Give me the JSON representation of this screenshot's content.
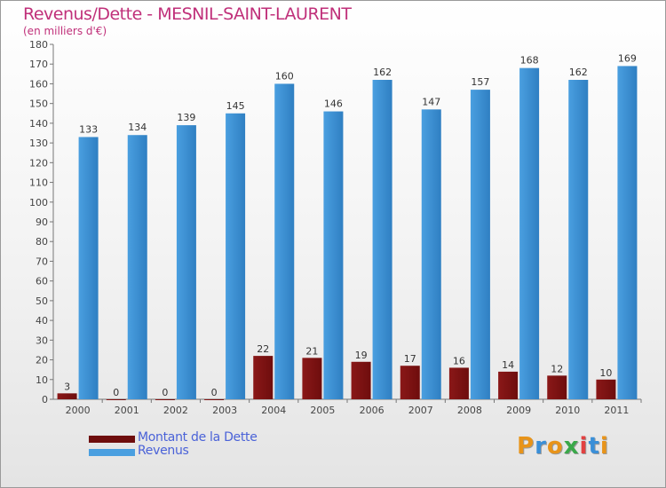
{
  "title": "Revenus/Dette - MESNIL-SAINT-LAURENT",
  "subtitle": "(en milliers d'€)",
  "chart_data": {
    "type": "bar",
    "title": "Revenus/Dette - MESNIL-SAINT-LAURENT",
    "ylabel": "(en milliers d'€)",
    "xlabel": "",
    "categories": [
      "2000",
      "2001",
      "2002",
      "2003",
      "2004",
      "2005",
      "2006",
      "2007",
      "2008",
      "2009",
      "2010",
      "2011"
    ],
    "series": [
      {
        "name": "Montant de la Dette",
        "values": [
          3,
          0,
          0,
          0,
          22,
          21,
          19,
          17,
          16,
          14,
          12,
          10
        ],
        "color": "#6e0d0d"
      },
      {
        "name": "Revenus",
        "values": [
          133,
          134,
          139,
          145,
          160,
          146,
          162,
          147,
          157,
          168,
          162,
          169
        ],
        "color": "#4a9fe0"
      }
    ],
    "ylim": [
      0,
      180
    ],
    "yticks": [
      0,
      10,
      20,
      30,
      40,
      50,
      60,
      70,
      80,
      90,
      100,
      110,
      120,
      130,
      140,
      150,
      160,
      170,
      180
    ],
    "grid": false,
    "legend": "bottom-left"
  },
  "legend": [
    {
      "label": "Montant de la Dette",
      "color": "#6e0d0d"
    },
    {
      "label": "Revenus",
      "color": "#4a9fe0"
    }
  ],
  "logo": {
    "letters": [
      "P",
      "r",
      "o",
      "x",
      "i",
      "t",
      "i"
    ],
    "colors": [
      "#e8941a",
      "#3a8fd8",
      "#e8941a",
      "#3aa84a",
      "#e24040",
      "#3a8fd8",
      "#e8941a"
    ]
  }
}
